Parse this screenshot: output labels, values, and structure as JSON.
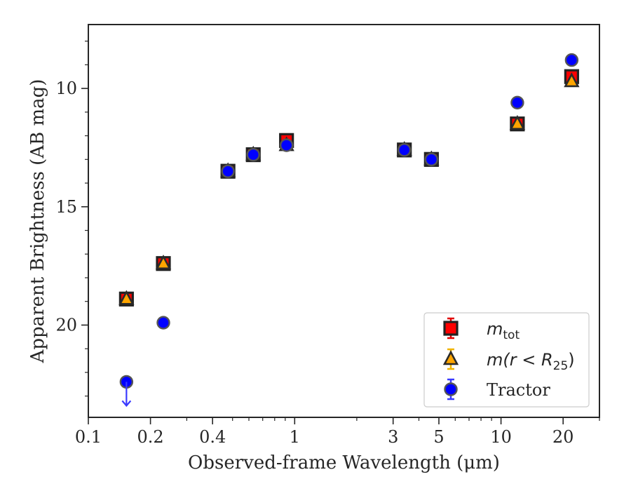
{
  "chart_data": {
    "type": "scatter",
    "title": "",
    "xlabel": "Observed-frame Wavelength (μm)",
    "ylabel": "Apparent Brightness (AB mag)",
    "x_scale": "log",
    "xlim": [
      0.1,
      30
    ],
    "ylim": [
      23.9,
      7.3
    ],
    "y_inverted": true,
    "x_ticks": [
      {
        "value": 0.1,
        "label": "0.1"
      },
      {
        "value": 0.2,
        "label": "0.2"
      },
      {
        "value": 0.4,
        "label": "0.4"
      },
      {
        "value": 1,
        "label": "1"
      },
      {
        "value": 3,
        "label": "3"
      },
      {
        "value": 5,
        "label": "5"
      },
      {
        "value": 10,
        "label": "10"
      },
      {
        "value": 20,
        "label": "20"
      }
    ],
    "y_ticks": [
      {
        "value": 10,
        "label": "10"
      },
      {
        "value": 15,
        "label": "15"
      },
      {
        "value": 20,
        "label": "20"
      }
    ],
    "legend": {
      "placement": "lower right",
      "entries": [
        {
          "label": "m",
          "subscript": "tot",
          "marker": "square",
          "color": "#ff0000",
          "errcolor": "#e00000"
        },
        {
          "label": "m(r < R",
          "subscript": "25",
          "suffix": ")",
          "marker": "triangle",
          "color": "#ffa500",
          "errcolor": "#f0b400"
        },
        {
          "label": "Tractor",
          "marker": "circle",
          "color": "#0000ff",
          "errcolor": "#3a3aff"
        }
      ]
    },
    "series": [
      {
        "name": "m_tot",
        "marker": "square",
        "color": "#ff0000",
        "points": [
          {
            "x": 0.153,
            "y": 18.9
          },
          {
            "x": 0.231,
            "y": 17.4
          },
          {
            "x": 0.475,
            "y": 13.5
          },
          {
            "x": 0.63,
            "y": 12.8
          },
          {
            "x": 0.913,
            "y": 12.2
          },
          {
            "x": 3.4,
            "y": 12.6
          },
          {
            "x": 4.6,
            "y": 13.0
          },
          {
            "x": 12.0,
            "y": 11.5
          },
          {
            "x": 22.0,
            "y": 9.5
          }
        ]
      },
      {
        "name": "m(r < R25)",
        "marker": "triangle",
        "color": "#ffa500",
        "points": [
          {
            "x": 0.153,
            "y": 18.9
          },
          {
            "x": 0.231,
            "y": 17.4
          },
          {
            "x": 0.475,
            "y": 13.5
          },
          {
            "x": 0.63,
            "y": 12.8
          },
          {
            "x": 0.913,
            "y": 12.4
          },
          {
            "x": 3.4,
            "y": 12.6
          },
          {
            "x": 4.6,
            "y": 13.0
          },
          {
            "x": 12.0,
            "y": 11.5
          },
          {
            "x": 22.0,
            "y": 9.7
          }
        ]
      },
      {
        "name": "Tractor",
        "marker": "circle",
        "color": "#0000ff",
        "points": [
          {
            "x": 0.153,
            "y": 22.4,
            "upper_limit": true
          },
          {
            "x": 0.231,
            "y": 19.9
          },
          {
            "x": 0.475,
            "y": 13.5
          },
          {
            "x": 0.63,
            "y": 12.8
          },
          {
            "x": 0.913,
            "y": 12.4
          },
          {
            "x": 3.4,
            "y": 12.6
          },
          {
            "x": 4.6,
            "y": 13.0
          },
          {
            "x": 12.0,
            "y": 10.6
          },
          {
            "x": 22.0,
            "y": 8.8
          }
        ]
      }
    ]
  }
}
